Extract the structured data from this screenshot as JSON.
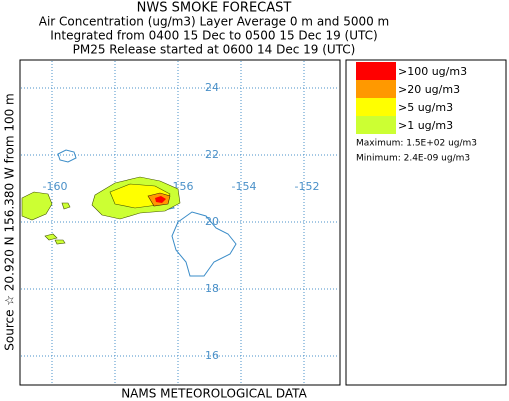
{
  "header": {
    "title": "NWS SMOKE FORECAST",
    "lines": [
      "Air Concentration (ug/m3) Layer Average    0 m and  5000 m",
      "Integrated from 0400 15 Dec to 0500 15 Dec 19 (UTC)",
      "PM25 Release started at 0600 14 Dec 19 (UTC)"
    ]
  },
  "map": {
    "latitudes": [
      24,
      22,
      20,
      18,
      16
    ],
    "longitudes": [
      -160,
      -156,
      -154,
      -152
    ],
    "side_label": "Source ☆  20.920 N 156.380 W     from  100 m",
    "footer": "NAMS METEOROLOGICAL DATA"
  },
  "legend": {
    "entries": [
      {
        "label": ">100 ug/m3",
        "color": "#ff0000"
      },
      {
        "label": ">20 ug/m3",
        "color": "#ff9900"
      },
      {
        "label": ">5 ug/m3",
        "color": "#ffff00"
      },
      {
        "label": ">1 ug/m3",
        "color": "#ccff33"
      }
    ],
    "maximum": "Maximum: 1.5E+02 ug/m3",
    "minimum": "Minimum: 2.4E-09 ug/m3"
  }
}
